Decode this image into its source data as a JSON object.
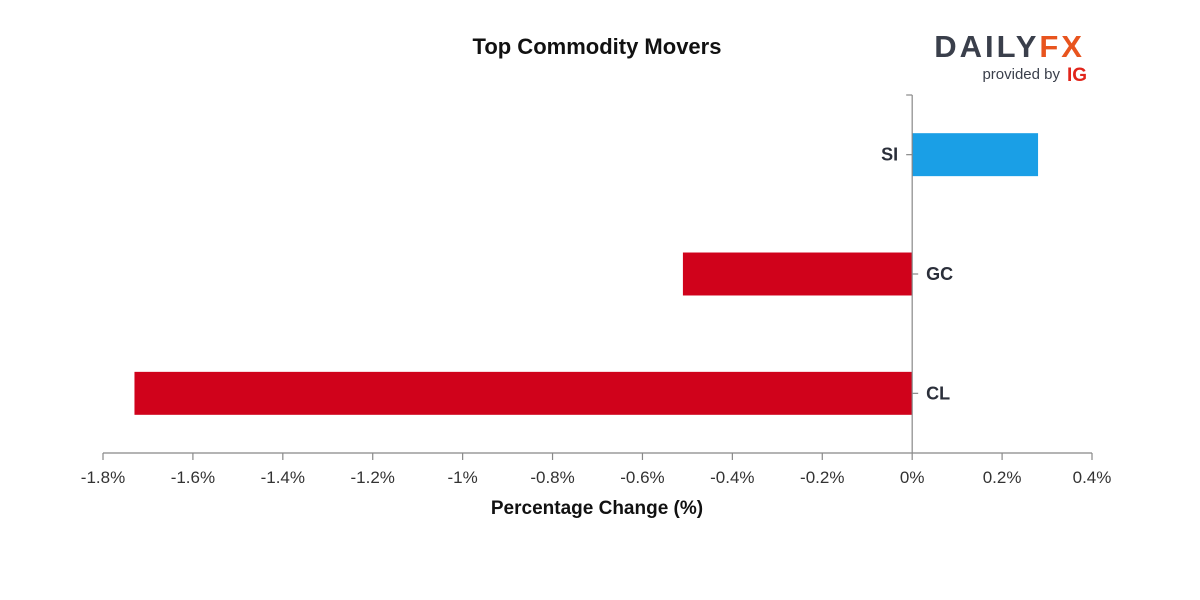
{
  "colors": {
    "positive": "#1a9fe6",
    "negative": "#d0021b",
    "logo_dark": "#3a3f4b",
    "logo_accent": "#e8541e",
    "ig_red": "#e1251b"
  },
  "logo": {
    "main_dark": "DAILY",
    "main_accent": "FX",
    "sub": "provided by",
    "ig": "IG"
  },
  "chart_data": {
    "type": "bar",
    "orientation": "horizontal",
    "title": "Top Commodity Movers",
    "xlabel": "Percentage Change (%)",
    "ylabel": "",
    "categories": [
      "SI",
      "GC",
      "CL"
    ],
    "values": [
      0.28,
      -0.51,
      -1.73
    ],
    "xlim": [
      -1.8,
      0.4
    ],
    "xticks": [
      -1.8,
      -1.6,
      -1.4,
      -1.2,
      -1,
      -0.8,
      -0.6,
      -0.4,
      -0.2,
      0,
      0.2,
      0.4
    ],
    "xtick_labels": [
      "-1.8%",
      "-1.6%",
      "-1.4%",
      "-1.2%",
      "-1%",
      "-0.8%",
      "-0.6%",
      "-0.4%",
      "-0.2%",
      "0%",
      "0.2%",
      "0.4%"
    ],
    "grid": false,
    "legend": "none"
  }
}
